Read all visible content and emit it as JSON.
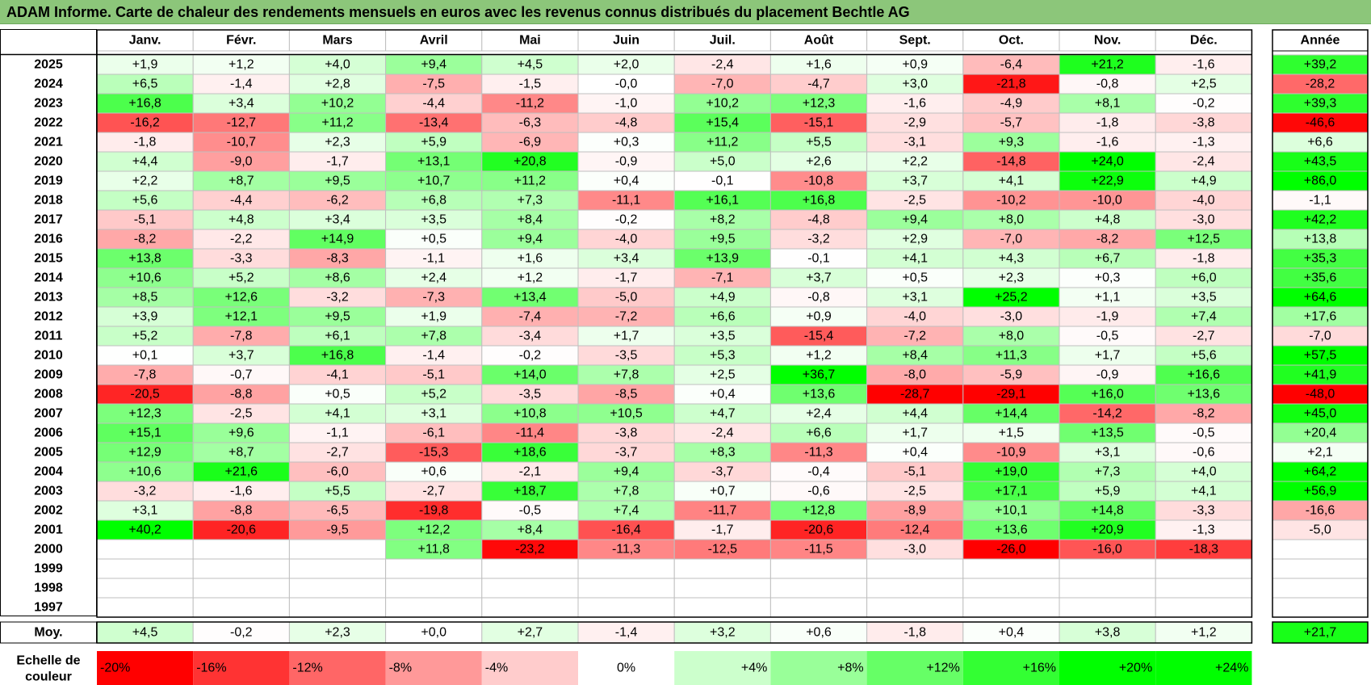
{
  "title": "ADAM Informe. Carte de chaleur des rendements mensuels en euros avec les revenus connus distribués du placement Bechtle AG",
  "chart_data": {
    "type": "heatmap",
    "columns": [
      "Janv.",
      "Févr.",
      "Mars",
      "Avril",
      "Mai",
      "Juin",
      "Juil.",
      "Août",
      "Sept.",
      "Oct.",
      "Nov.",
      "Déc."
    ],
    "year_column": "Année",
    "rows": [
      {
        "label": "2025",
        "values": [
          "+1,9",
          "+1,2",
          "+4,0",
          "+9,4",
          "+4,5",
          "+2,0",
          "-2,4",
          "+1,6",
          "+0,9",
          "-6,4",
          "+21,2",
          "-1,6"
        ],
        "year": "+39,2"
      },
      {
        "label": "2024",
        "values": [
          "+6,5",
          "-1,4",
          "+2,8",
          "-7,5",
          "-1,5",
          "-0,0",
          "-7,0",
          "-4,7",
          "+3,0",
          "-21,8",
          "-0,8",
          "+2,5"
        ],
        "year": "-28,2"
      },
      {
        "label": "2023",
        "values": [
          "+16,8",
          "+3,4",
          "+10,2",
          "-4,4",
          "-11,2",
          "-1,0",
          "+10,2",
          "+12,3",
          "-1,6",
          "-4,9",
          "+8,1",
          "-0,2"
        ],
        "year": "+39,3"
      },
      {
        "label": "2022",
        "values": [
          "-16,2",
          "-12,7",
          "+11,2",
          "-13,4",
          "-6,3",
          "-4,8",
          "+15,4",
          "-15,1",
          "-2,9",
          "-5,7",
          "-1,8",
          "-3,8"
        ],
        "year": "-46,6"
      },
      {
        "label": "2021",
        "values": [
          "-1,8",
          "-10,7",
          "+2,3",
          "+5,9",
          "-6,9",
          "+0,3",
          "+11,2",
          "+5,5",
          "-3,1",
          "+9,3",
          "-1,6",
          "-1,3"
        ],
        "year": "+6,6"
      },
      {
        "label": "2020",
        "values": [
          "+4,4",
          "-9,0",
          "-1,7",
          "+13,1",
          "+20,8",
          "-0,9",
          "+5,0",
          "+2,6",
          "+2,2",
          "-14,8",
          "+24,0",
          "-2,4"
        ],
        "year": "+43,5"
      },
      {
        "label": "2019",
        "values": [
          "+2,2",
          "+8,7",
          "+9,5",
          "+10,7",
          "+11,2",
          "+0,4",
          "-0,1",
          "-10,8",
          "+3,7",
          "+4,1",
          "+22,9",
          "+4,9"
        ],
        "year": "+86,0"
      },
      {
        "label": "2018",
        "values": [
          "+5,6",
          "-4,4",
          "-6,2",
          "+6,8",
          "+7,3",
          "-11,1",
          "+16,1",
          "+16,8",
          "-2,5",
          "-10,2",
          "-10,0",
          "-4,0"
        ],
        "year": "-1,1"
      },
      {
        "label": "2017",
        "values": [
          "-5,1",
          "+4,8",
          "+3,4",
          "+3,5",
          "+8,4",
          "-0,2",
          "+8,2",
          "-4,8",
          "+9,4",
          "+8,0",
          "+4,8",
          "-3,0"
        ],
        "year": "+42,2"
      },
      {
        "label": "2016",
        "values": [
          "-8,2",
          "-2,2",
          "+14,9",
          "+0,5",
          "+9,4",
          "-4,0",
          "+9,5",
          "-3,2",
          "+2,9",
          "-7,0",
          "-8,2",
          "+12,5"
        ],
        "year": "+13,8"
      },
      {
        "label": "2015",
        "values": [
          "+13,8",
          "-3,3",
          "-8,3",
          "-1,1",
          "+1,6",
          "+3,4",
          "+13,9",
          "-0,1",
          "+4,1",
          "+4,3",
          "+6,7",
          "-1,8"
        ],
        "year": "+35,3"
      },
      {
        "label": "2014",
        "values": [
          "+10,6",
          "+5,2",
          "+8,6",
          "+2,4",
          "+1,2",
          "-1,7",
          "-7,1",
          "+3,7",
          "+0,5",
          "+2,3",
          "+0,3",
          "+6,0"
        ],
        "year": "+35,6"
      },
      {
        "label": "2013",
        "values": [
          "+8,5",
          "+12,6",
          "-3,2",
          "-7,3",
          "+13,4",
          "-5,0",
          "+4,9",
          "-0,8",
          "+3,1",
          "+25,2",
          "+1,1",
          "+3,5"
        ],
        "year": "+64,6"
      },
      {
        "label": "2012",
        "values": [
          "+3,9",
          "+12,1",
          "+9,5",
          "+1,9",
          "-7,4",
          "-7,2",
          "+6,6",
          "+0,9",
          "-4,0",
          "-3,0",
          "-1,9",
          "+7,4"
        ],
        "year": "+17,6"
      },
      {
        "label": "2011",
        "values": [
          "+5,2",
          "-7,8",
          "+6,1",
          "+7,8",
          "-3,4",
          "+1,7",
          "+3,5",
          "-15,4",
          "-7,2",
          "+8,0",
          "-0,5",
          "-2,7"
        ],
        "year": "-7,0"
      },
      {
        "label": "2010",
        "values": [
          "+0,1",
          "+3,7",
          "+16,8",
          "-1,4",
          "-0,2",
          "-3,5",
          "+5,3",
          "+1,2",
          "+8,4",
          "+11,3",
          "+1,7",
          "+5,6"
        ],
        "year": "+57,5"
      },
      {
        "label": "2009",
        "values": [
          "-7,8",
          "-0,7",
          "-4,1",
          "-5,1",
          "+14,0",
          "+7,8",
          "+2,5",
          "+36,7",
          "-8,0",
          "-5,9",
          "-0,9",
          "+16,6"
        ],
        "year": "+41,9"
      },
      {
        "label": "2008",
        "values": [
          "-20,5",
          "-8,8",
          "+0,5",
          "+5,2",
          "-3,5",
          "-8,5",
          "+0,4",
          "+13,6",
          "-28,7",
          "-29,1",
          "+16,0",
          "+13,6"
        ],
        "year": "-48,0"
      },
      {
        "label": "2007",
        "values": [
          "+12,3",
          "-2,5",
          "+4,1",
          "+3,1",
          "+10,8",
          "+10,5",
          "+4,7",
          "+2,4",
          "+4,4",
          "+14,4",
          "-14,2",
          "-8,2"
        ],
        "year": "+45,0"
      },
      {
        "label": "2006",
        "values": [
          "+15,1",
          "+9,6",
          "-1,1",
          "-6,1",
          "-11,4",
          "-3,8",
          "-2,4",
          "+6,6",
          "+1,7",
          "+1,5",
          "+13,5",
          "-0,5"
        ],
        "year": "+20,4"
      },
      {
        "label": "2005",
        "values": [
          "+12,9",
          "+8,7",
          "-2,7",
          "-15,3",
          "+18,6",
          "-3,7",
          "+8,3",
          "-11,3",
          "+0,4",
          "-10,9",
          "+3,1",
          "-0,6"
        ],
        "year": "+2,1"
      },
      {
        "label": "2004",
        "values": [
          "+10,6",
          "+21,6",
          "-6,0",
          "+0,6",
          "-2,1",
          "+9,4",
          "-3,7",
          "-0,4",
          "-5,1",
          "+19,0",
          "+7,3",
          "+4,0"
        ],
        "year": "+64,2"
      },
      {
        "label": "2003",
        "values": [
          "-3,2",
          "-1,6",
          "+5,5",
          "-2,7",
          "+18,7",
          "+7,8",
          "+0,7",
          "-0,6",
          "-2,5",
          "+17,1",
          "+5,9",
          "+4,1"
        ],
        "year": "+56,9"
      },
      {
        "label": "2002",
        "values": [
          "+3,1",
          "-8,8",
          "-6,5",
          "-19,8",
          "-0,5",
          "+7,4",
          "-11,7",
          "+12,8",
          "-8,9",
          "+10,1",
          "+14,8",
          "-3,3"
        ],
        "year": "-16,6"
      },
      {
        "label": "2001",
        "values": [
          "+40,2",
          "-20,6",
          "-9,5",
          "+12,2",
          "+8,4",
          "-16,4",
          "-1,7",
          "-20,6",
          "-12,4",
          "+13,6",
          "+20,9",
          "-1,3"
        ],
        "year": "-5,0"
      },
      {
        "label": "2000",
        "values": [
          "",
          "",
          "",
          "+11,8",
          "-23,2",
          "-11,3",
          "-12,5",
          "-11,5",
          "-3,0",
          "-26,0",
          "-16,0",
          "-18,3"
        ],
        "year": ""
      },
      {
        "label": "1999",
        "values": [
          "",
          "",
          "",
          "",
          "",
          "",
          "",
          "",
          "",
          "",
          "",
          ""
        ],
        "year": ""
      },
      {
        "label": "1998",
        "values": [
          "",
          "",
          "",
          "",
          "",
          "",
          "",
          "",
          "",
          "",
          "",
          ""
        ],
        "year": ""
      },
      {
        "label": "1997",
        "values": [
          "",
          "",
          "",
          "",
          "",
          "",
          "",
          "",
          "",
          "",
          "",
          ""
        ],
        "year": ""
      }
    ],
    "average": {
      "label": "Moy.",
      "values": [
        "+4,5",
        "-0,2",
        "+2,3",
        "+0,0",
        "+2,7",
        "-1,4",
        "+3,2",
        "+0,6",
        "-1,8",
        "+0,4",
        "+3,8",
        "+1,2"
      ],
      "year": "+21,7"
    },
    "color_scale": {
      "label_line1": "Echelle de",
      "label_line2": "couleur",
      "stops": [
        "-20%",
        "-16%",
        "-12%",
        "-8%",
        "-4%",
        "0%",
        "+4%",
        "+8%",
        "+12%",
        "+16%",
        "+20%",
        "+24%"
      ],
      "stop_values": [
        -20,
        -16,
        -12,
        -8,
        -4,
        0,
        4,
        8,
        12,
        16,
        20,
        24
      ],
      "negative_color": "#ff0000",
      "positive_color": "#00ff00",
      "neutral_color": "#ffffff"
    }
  }
}
